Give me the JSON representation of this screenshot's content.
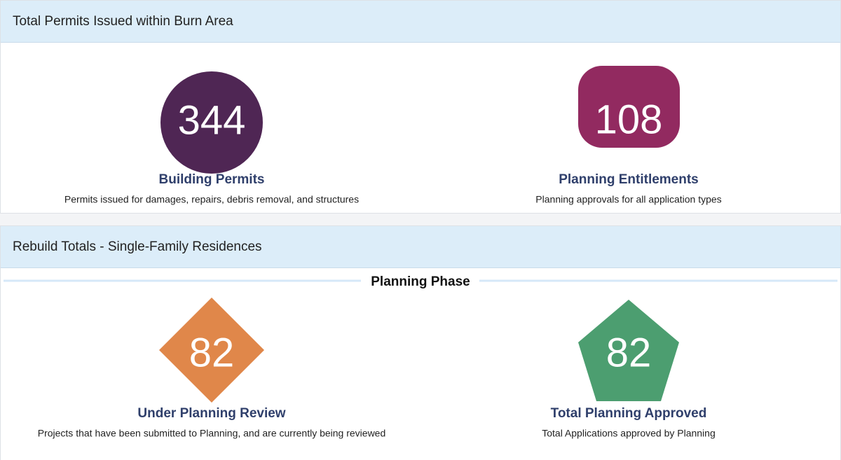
{
  "panels": [
    {
      "title": "Total Permits Issued within Burn Area",
      "stats": [
        {
          "value": 344,
          "label": "Building Permits",
          "description": "Permits issued for damages, repairs, debris removal, and structures"
        },
        {
          "value": 108,
          "label": "Planning Entitlements",
          "description": "Planning approvals for all application types"
        }
      ]
    },
    {
      "title": "Rebuild Totals - Single-Family Residences",
      "section": "Planning Phase",
      "stats": [
        {
          "value": 82,
          "label": "Under Planning Review",
          "description": "Projects that have been submitted to Planning, and are currently being reviewed"
        },
        {
          "value": 82,
          "label": "Total Planning Approved",
          "description": "Total Applications approved by Planning"
        }
      ]
    }
  ]
}
